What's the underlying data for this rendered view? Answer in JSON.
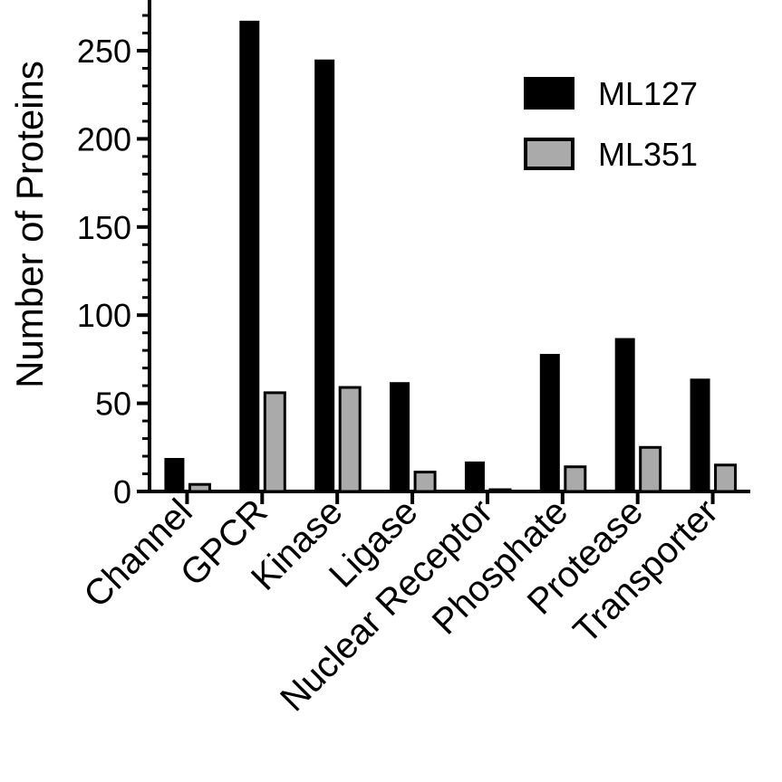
{
  "chart_data": {
    "type": "bar",
    "categories": [
      "Channel",
      "GPCR",
      "Kinase",
      "Ligase",
      "Nuclear Receptor",
      "Phosphate",
      "Protease",
      "Transporter"
    ],
    "series": [
      {
        "name": "ML127",
        "color": "#000000",
        "values": [
          19,
          267,
          245,
          62,
          17,
          78,
          87,
          64
        ]
      },
      {
        "name": "ML351",
        "color": "#aaaaaa",
        "values": [
          4,
          56,
          59,
          11,
          1,
          14,
          25,
          15
        ]
      }
    ],
    "xlabel": "",
    "ylabel": "Number of Proteins",
    "ylim": [
      0,
      275
    ],
    "yticks": [
      0,
      50,
      100,
      150,
      200,
      250
    ],
    "legend_position": "top-right",
    "grid": false
  }
}
